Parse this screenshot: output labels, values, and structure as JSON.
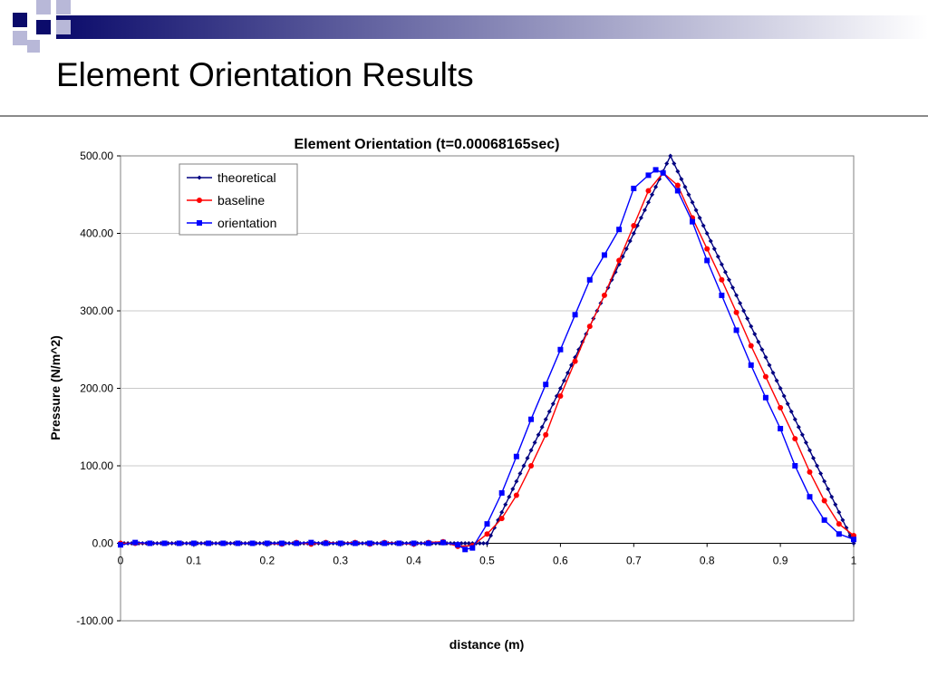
{
  "slide": {
    "title": "Element Orientation Results"
  },
  "colors": {
    "header_dark": "#0b0b6b",
    "header_fade": "#ffffff",
    "square_dark": "#0b0b6b",
    "square_light": "#b8b8d8",
    "rule": "#8a8a8a"
  },
  "chart_data": {
    "type": "line",
    "title": "Element Orientation (t=0.00068165sec)",
    "xlabel": "distance (m)",
    "ylabel": "Pressure (N/m^2)",
    "xlim": [
      0,
      1
    ],
    "ylim": [
      -100,
      500
    ],
    "x_ticks": [
      "0",
      "0.1",
      "0.2",
      "0.3",
      "0.4",
      "0.5",
      "0.6",
      "0.7",
      "0.8",
      "0.9",
      "1"
    ],
    "y_ticks": [
      "-100.00",
      "0.00",
      "100.00",
      "200.00",
      "300.00",
      "400.00",
      "500.00"
    ],
    "grid": "horizontal",
    "legend_position": "top-left",
    "series": [
      {
        "name": "theoretical",
        "color": "#000080",
        "marker": "diamond",
        "x": [
          0,
          0.1,
          0.2,
          0.3,
          0.4,
          0.5,
          0.55,
          0.6,
          0.65,
          0.7,
          0.75,
          0.8,
          0.85,
          0.9,
          0.95,
          1.0
        ],
        "y": [
          0,
          0,
          0,
          0,
          0,
          0,
          100,
          200,
          300,
          400,
          500,
          400,
          300,
          200,
          100,
          0
        ]
      },
      {
        "name": "baseline",
        "color": "#ff0000",
        "marker": "circle",
        "x": [
          0,
          0.02,
          0.04,
          0.06,
          0.08,
          0.1,
          0.12,
          0.14,
          0.16,
          0.18,
          0.2,
          0.22,
          0.24,
          0.26,
          0.28,
          0.3,
          0.32,
          0.34,
          0.36,
          0.38,
          0.4,
          0.42,
          0.44,
          0.46,
          0.48,
          0.5,
          0.52,
          0.54,
          0.56,
          0.58,
          0.6,
          0.62,
          0.64,
          0.66,
          0.68,
          0.7,
          0.72,
          0.74,
          0.76,
          0.78,
          0.8,
          0.82,
          0.84,
          0.86,
          0.88,
          0.9,
          0.92,
          0.94,
          0.96,
          0.98,
          1.0
        ],
        "y": [
          0,
          0,
          0,
          0,
          0,
          0,
          0,
          0,
          0,
          0,
          0,
          -1,
          1,
          -1,
          1,
          0,
          1,
          -1,
          1,
          0,
          -1,
          1,
          2,
          -4,
          -3,
          12,
          32,
          62,
          100,
          140,
          190,
          235,
          280,
          320,
          365,
          410,
          455,
          478,
          462,
          420,
          380,
          340,
          298,
          255,
          215,
          175,
          135,
          92,
          55,
          25,
          10
        ]
      },
      {
        "name": "orientation",
        "color": "#0000ff",
        "marker": "square",
        "x": [
          0,
          0.02,
          0.04,
          0.06,
          0.08,
          0.1,
          0.12,
          0.14,
          0.16,
          0.18,
          0.2,
          0.22,
          0.24,
          0.26,
          0.28,
          0.3,
          0.32,
          0.34,
          0.36,
          0.38,
          0.4,
          0.42,
          0.44,
          0.46,
          0.47,
          0.48,
          0.5,
          0.52,
          0.54,
          0.56,
          0.58,
          0.6,
          0.62,
          0.64,
          0.66,
          0.68,
          0.7,
          0.72,
          0.73,
          0.74,
          0.76,
          0.78,
          0.8,
          0.82,
          0.84,
          0.86,
          0.88,
          0.9,
          0.92,
          0.94,
          0.96,
          0.98,
          1.0
        ],
        "y": [
          -2,
          1,
          0,
          0,
          0,
          0,
          0,
          0,
          0,
          0,
          0,
          0,
          0,
          1,
          0,
          0,
          0,
          0,
          0,
          0,
          0,
          0,
          1,
          -2,
          -8,
          -6,
          25,
          65,
          112,
          160,
          205,
          250,
          295,
          340,
          372,
          405,
          458,
          475,
          482,
          478,
          455,
          415,
          365,
          320,
          275,
          230,
          188,
          148,
          100,
          60,
          30,
          12,
          5
        ]
      }
    ]
  }
}
